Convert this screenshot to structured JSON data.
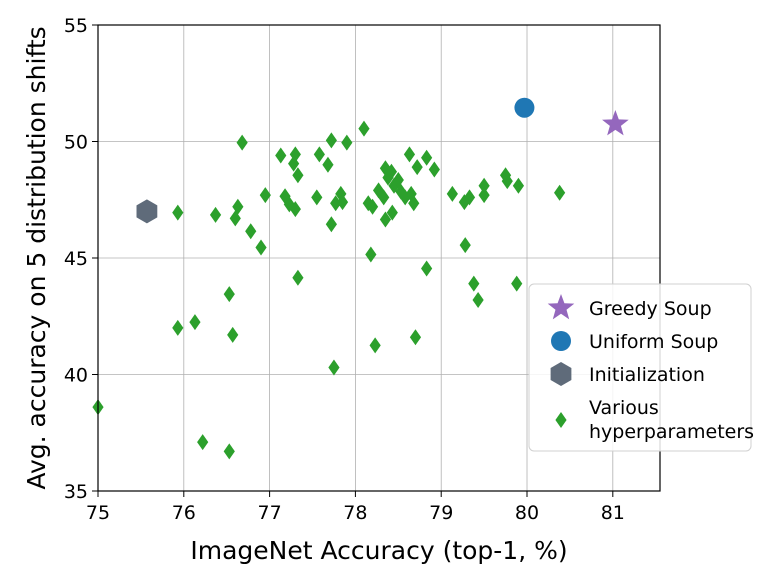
{
  "chart_data": {
    "type": "scatter",
    "title": "",
    "xlabel": "ImageNet Accuracy (top-1, %)",
    "ylabel": "Avg. accuracy on 5 distribution shifts",
    "xlim": [
      75,
      81.55
    ],
    "ylim": [
      35,
      55
    ],
    "xticks": [
      "75",
      "76",
      "77",
      "78",
      "79",
      "80",
      "81"
    ],
    "yticks": [
      "35",
      "40",
      "45",
      "50",
      "55"
    ],
    "grid": true,
    "legend_position": "right",
    "series": [
      {
        "name": "Greedy Soup",
        "marker": "star",
        "color": "#9467bd",
        "points": [
          [
            81.03,
            50.75
          ]
        ]
      },
      {
        "name": "Uniform Soup",
        "marker": "circle",
        "color": "#1f77b4",
        "points": [
          [
            79.97,
            51.45
          ]
        ]
      },
      {
        "name": "Initialization",
        "marker": "hexagon",
        "color": "#5f6b7a",
        "points": [
          [
            75.57,
            47.0
          ]
        ]
      },
      {
        "name": "Various hyperparameters",
        "legend_lines": [
          "Various",
          "hyperparameters"
        ],
        "marker": "diamond",
        "color": "#2ca02c",
        "points": [
          [
            75.0,
            38.6
          ],
          [
            75.93,
            46.95
          ],
          [
            75.93,
            42.0
          ],
          [
            76.13,
            42.25
          ],
          [
            76.22,
            37.1
          ],
          [
            76.37,
            46.85
          ],
          [
            76.53,
            43.45
          ],
          [
            76.53,
            36.7
          ],
          [
            76.57,
            41.7
          ],
          [
            76.6,
            46.7
          ],
          [
            76.63,
            47.2
          ],
          [
            76.68,
            49.95
          ],
          [
            76.78,
            46.15
          ],
          [
            76.9,
            45.45
          ],
          [
            76.95,
            47.7
          ],
          [
            77.13,
            49.4
          ],
          [
            77.18,
            47.65
          ],
          [
            77.23,
            47.3
          ],
          [
            77.28,
            49.05
          ],
          [
            77.3,
            47.1
          ],
          [
            77.3,
            49.45
          ],
          [
            77.33,
            48.55
          ],
          [
            77.33,
            44.15
          ],
          [
            77.55,
            47.6
          ],
          [
            77.58,
            49.45
          ],
          [
            77.68,
            49.0
          ],
          [
            77.72,
            50.05
          ],
          [
            77.72,
            46.45
          ],
          [
            77.75,
            40.3
          ],
          [
            77.77,
            47.35
          ],
          [
            77.83,
            47.75
          ],
          [
            77.85,
            47.4
          ],
          [
            77.9,
            49.95
          ],
          [
            78.1,
            50.55
          ],
          [
            78.15,
            47.35
          ],
          [
            78.18,
            45.15
          ],
          [
            78.2,
            47.2
          ],
          [
            78.23,
            41.25
          ],
          [
            78.27,
            47.9
          ],
          [
            78.33,
            47.6
          ],
          [
            78.35,
            48.85
          ],
          [
            78.35,
            46.65
          ],
          [
            78.38,
            48.45
          ],
          [
            78.42,
            48.7
          ],
          [
            78.43,
            46.95
          ],
          [
            78.45,
            48.1
          ],
          [
            78.5,
            48.35
          ],
          [
            78.53,
            47.85
          ],
          [
            78.58,
            47.6
          ],
          [
            78.63,
            49.45
          ],
          [
            78.65,
            47.75
          ],
          [
            78.68,
            47.35
          ],
          [
            78.7,
            41.6
          ],
          [
            78.72,
            48.9
          ],
          [
            78.83,
            49.3
          ],
          [
            78.83,
            44.55
          ],
          [
            78.92,
            48.8
          ],
          [
            79.13,
            47.75
          ],
          [
            79.27,
            47.4
          ],
          [
            79.28,
            45.55
          ],
          [
            79.33,
            47.6
          ],
          [
            79.38,
            43.9
          ],
          [
            79.43,
            43.2
          ],
          [
            79.5,
            48.1
          ],
          [
            79.5,
            47.7
          ],
          [
            79.75,
            48.55
          ],
          [
            79.77,
            48.3
          ],
          [
            79.88,
            43.9
          ],
          [
            79.9,
            48.1
          ],
          [
            80.38,
            47.8
          ]
        ]
      }
    ]
  }
}
